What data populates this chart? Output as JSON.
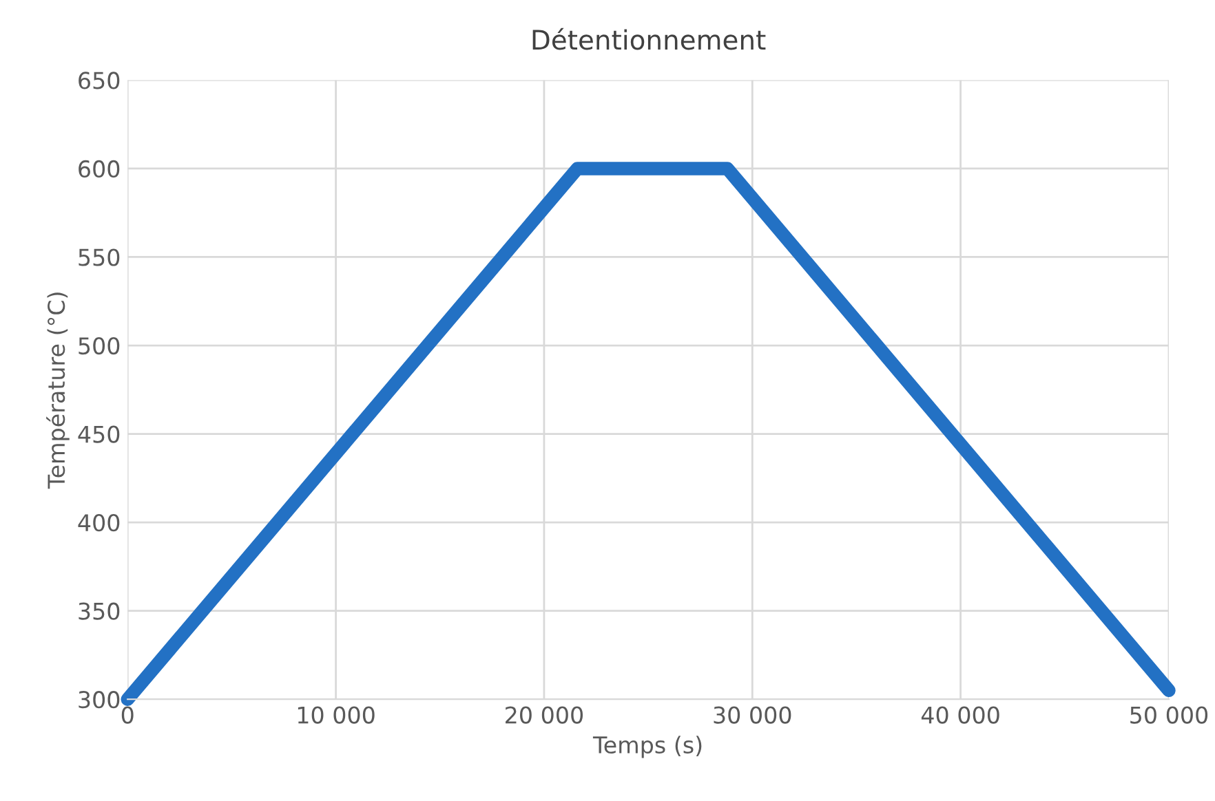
{
  "chart_data": {
    "type": "line",
    "title": "Détentionnement",
    "xlabel": "Temps (s)",
    "ylabel": "Température (°C)",
    "x": [
      0,
      21600,
      28800,
      50000
    ],
    "series": [
      {
        "color": "#2371c4",
        "values": [
          300,
          600,
          600,
          305
        ]
      }
    ],
    "xlim": [
      0,
      50000
    ],
    "xticks": [
      0,
      {
        "value": 10000,
        "label": "10 000"
      },
      {
        "value": 20000,
        "label": "20 000"
      },
      {
        "value": 30000,
        "label": "30 000"
      },
      {
        "value": 40000,
        "label": "40 000"
      },
      {
        "value": 50000,
        "label": "50 000"
      }
    ],
    "ylim": [
      300,
      650
    ],
    "yticks": [
      300,
      350,
      400,
      450,
      500,
      550,
      600,
      650
    ],
    "grid": true,
    "line_style": "solid"
  }
}
